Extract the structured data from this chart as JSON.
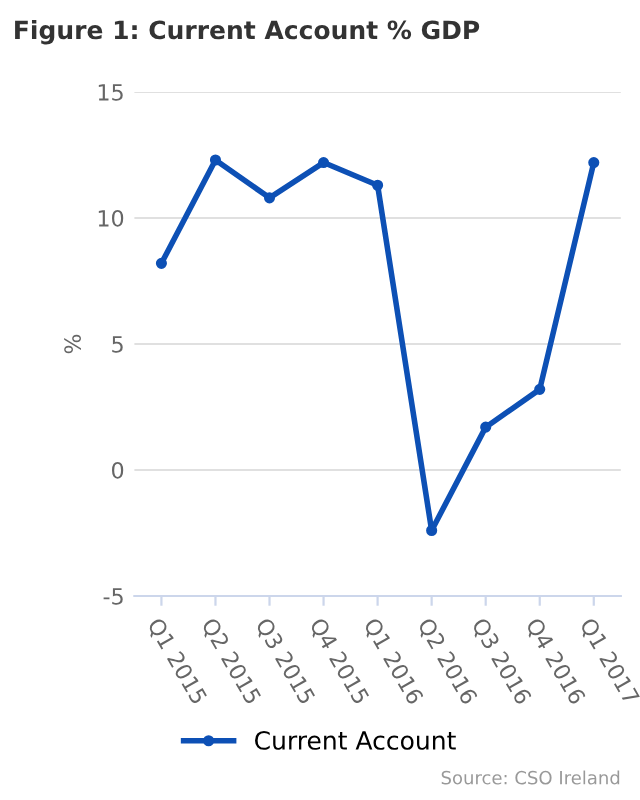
{
  "chart_data": {
    "type": "line",
    "title": "Figure 1: Current Account % GDP",
    "ylabel": "%",
    "categories": [
      "Q1 2015",
      "Q2 2015",
      "Q3 2015",
      "Q4 2015",
      "Q1 2016",
      "Q2 2016",
      "Q3 2016",
      "Q4 2016",
      "Q1 2017"
    ],
    "series": [
      {
        "name": "Current Account",
        "color": "#0d50b5",
        "values": [
          8.2,
          12.3,
          10.8,
          12.2,
          11.3,
          -2.4,
          1.7,
          3.2,
          12.2
        ]
      }
    ],
    "ylim": [
      -5,
      15
    ],
    "yticks": [
      -5,
      0,
      5,
      10,
      15
    ],
    "grid": "y",
    "legend": "bottom",
    "marker": "circle",
    "annotations": [
      "Source: CSO Ireland"
    ]
  }
}
